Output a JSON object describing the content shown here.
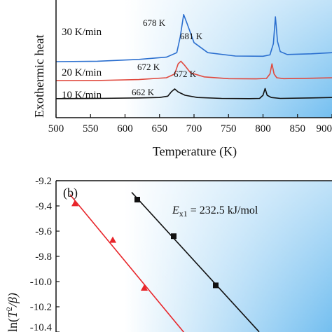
{
  "chart_data": [
    {
      "type": "line",
      "ylabel": "Exothermic heat",
      "xlabel": "Temperature (K)",
      "xlim": [
        500,
        900
      ],
      "x_ticks": [
        "500",
        "550",
        "600",
        "650",
        "700",
        "750",
        "800",
        "850",
        "900"
      ],
      "grid": false,
      "series": [
        {
          "name": "30 K/min",
          "color": "#2b6fcf",
          "x": [
            500,
            560,
            620,
            660,
            675,
            680,
            685,
            690,
            700,
            720,
            760,
            800,
            810,
            815,
            818,
            821,
            825,
            835,
            870,
            900
          ],
          "y": [
            2.5,
            2.52,
            2.6,
            2.7,
            2.9,
            3.6,
            4.6,
            4.2,
            3.35,
            2.9,
            2.75,
            2.74,
            2.8,
            3.3,
            4.5,
            3.4,
            2.95,
            2.82,
            2.85,
            2.9
          ]
        },
        {
          "name": "20 K/min",
          "color": "#e04a3f",
          "x": [
            500,
            560,
            620,
            660,
            672,
            677,
            681,
            686,
            695,
            715,
            750,
            790,
            805,
            810,
            813,
            816,
            820,
            830,
            870,
            900
          ],
          "y": [
            1.65,
            1.66,
            1.7,
            1.78,
            1.95,
            2.4,
            2.52,
            2.35,
            2.0,
            1.82,
            1.74,
            1.73,
            1.75,
            1.95,
            2.4,
            1.95,
            1.78,
            1.74,
            1.76,
            1.78
          ]
        },
        {
          "name": "10 K/min",
          "color": "#111111",
          "x": [
            500,
            560,
            620,
            650,
            662,
            667,
            672,
            677,
            687,
            705,
            740,
            780,
            795,
            800,
            803,
            806,
            812,
            825,
            870,
            900
          ],
          "y": [
            0.85,
            0.86,
            0.88,
            0.9,
            0.96,
            1.15,
            1.28,
            1.15,
            1.0,
            0.9,
            0.86,
            0.85,
            0.86,
            1.0,
            1.3,
            1.0,
            0.9,
            0.86,
            0.88,
            0.9
          ]
        }
      ],
      "rate_labels": [
        "30 K/min",
        "20 K/min",
        "10 K/min"
      ],
      "peak_labels": [
        "678 K",
        "681 K",
        "672 K",
        "672 K",
        "662 K"
      ]
    },
    {
      "type": "scatter",
      "panel": "(b)",
      "ylabel": "ln(T²/β)",
      "ylim": [
        -10.4,
        -9.2
      ],
      "y_ticks": [
        "-9.2",
        "-9.4",
        "-9.6",
        "-9.8",
        "-10.0",
        "-10.2",
        "-10.4"
      ],
      "annotation": "E_x1 = 232.5 kJ/mol",
      "series": [
        {
          "color": "#e8252a",
          "marker": "triangle",
          "x": [
            1,
            2,
            3
          ],
          "y": [
            -9.38,
            -9.67,
            -10.05
          ]
        },
        {
          "color": "#111111",
          "marker": "square",
          "x": [
            1,
            2,
            3
          ],
          "y": [
            -9.35,
            -9.64,
            -10.03
          ]
        }
      ]
    }
  ],
  "panel_b": {
    "tag": "(b)",
    "ylabel_main": "ln(",
    "ylabel_T": "T",
    "ylabel_sup": "2",
    "ylabel_beta": "/β)",
    "annot_E": "E",
    "annot_sub": "x1",
    "annot_value": " = 232.5 kJ/mol"
  },
  "panel_a": {
    "ylabel": "Exothermic heat",
    "xlabel": "Temperature (K)"
  },
  "colors": {
    "blue": "#2b6fcf",
    "red": "#e04a3f",
    "black": "#111111",
    "bg_gradient_start": "#ffffff",
    "bg_gradient_end": "#7cc3f0"
  }
}
